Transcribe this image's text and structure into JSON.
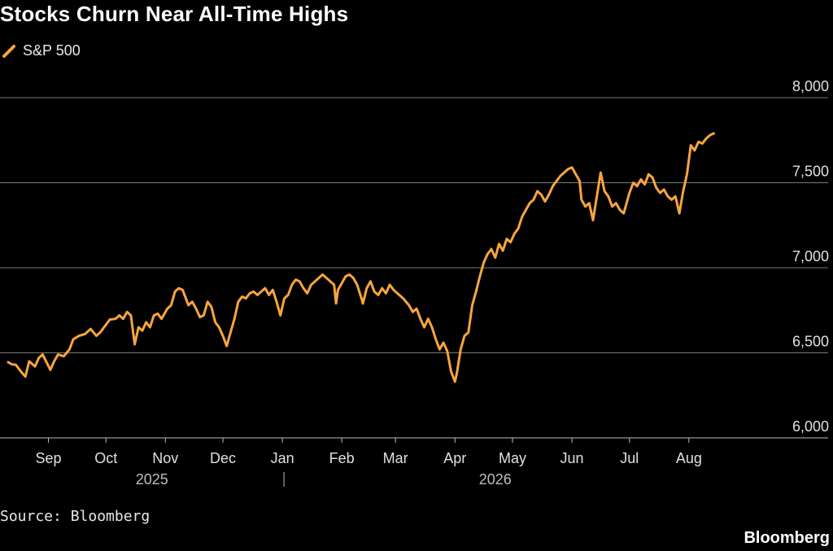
{
  "title": "Stocks Churn Near All-Time Highs",
  "source": "Source: Bloomberg",
  "brand": "Bloomberg",
  "colors": {
    "line": "#f7a540",
    "grid": "#7a7a7a",
    "text": "#e0e0e0",
    "background": "#000000"
  },
  "chart_data": {
    "type": "line",
    "legend_position": "top-left",
    "grid": true,
    "ylim": [
      6000,
      8000
    ],
    "y_ticks": [
      6000,
      6500,
      7000,
      7500,
      8000
    ],
    "y_tick_labels": [
      "6,000",
      "6,500",
      "7,000",
      "7,500",
      "8,000"
    ],
    "x_tick_labels": [
      "Sep",
      "Oct",
      "Nov",
      "Dec",
      "Jan",
      "Feb",
      "Mar",
      "Apr",
      "May",
      "Jun",
      "Jul",
      "Aug"
    ],
    "x_tick_dates": [
      "2025-09-01",
      "2025-10-01",
      "2025-11-01",
      "2025-12-01",
      "2026-01-01",
      "2026-02-01",
      "2026-03-01",
      "2026-04-01",
      "2026-05-01",
      "2026-06-01",
      "2026-07-01",
      "2026-08-01"
    ],
    "year_labels": [
      {
        "label": "2025",
        "date": "2025-10-25"
      },
      {
        "label": "2026",
        "date": "2026-04-22"
      }
    ],
    "year_divider_date": "2026-01-01",
    "xlim": [
      "2025-08-11",
      "2026-09-18"
    ],
    "series": [
      {
        "name": "S&P 500",
        "points": [
          [
            "2025-08-11",
            6445
          ],
          [
            "2025-08-13",
            6432
          ],
          [
            "2025-08-15",
            6430
          ],
          [
            "2025-08-18",
            6385
          ],
          [
            "2025-08-20",
            6360
          ],
          [
            "2025-08-22",
            6450
          ],
          [
            "2025-08-25",
            6420
          ],
          [
            "2025-08-27",
            6470
          ],
          [
            "2025-08-29",
            6490
          ],
          [
            "2025-09-02",
            6400
          ],
          [
            "2025-09-04",
            6450
          ],
          [
            "2025-09-06",
            6490
          ],
          [
            "2025-09-09",
            6480
          ],
          [
            "2025-09-12",
            6520
          ],
          [
            "2025-09-14",
            6580
          ],
          [
            "2025-09-17",
            6600
          ],
          [
            "2025-09-20",
            6610
          ],
          [
            "2025-09-23",
            6640
          ],
          [
            "2025-09-26",
            6600
          ],
          [
            "2025-09-28",
            6620
          ],
          [
            "2025-10-01",
            6665
          ],
          [
            "2025-10-03",
            6695
          ],
          [
            "2025-10-06",
            6700
          ],
          [
            "2025-10-08",
            6720
          ],
          [
            "2025-10-10",
            6700
          ],
          [
            "2025-10-12",
            6740
          ],
          [
            "2025-10-14",
            6720
          ],
          [
            "2025-10-16",
            6550
          ],
          [
            "2025-10-18",
            6650
          ],
          [
            "2025-10-20",
            6630
          ],
          [
            "2025-10-22",
            6680
          ],
          [
            "2025-10-24",
            6650
          ],
          [
            "2025-10-26",
            6720
          ],
          [
            "2025-10-28",
            6730
          ],
          [
            "2025-10-30",
            6700
          ],
          [
            "2025-11-02",
            6760
          ],
          [
            "2025-11-04",
            6780
          ],
          [
            "2025-11-06",
            6860
          ],
          [
            "2025-11-08",
            6880
          ],
          [
            "2025-11-10",
            6870
          ],
          [
            "2025-11-13",
            6780
          ],
          [
            "2025-11-15",
            6800
          ],
          [
            "2025-11-17",
            6760
          ],
          [
            "2025-11-19",
            6710
          ],
          [
            "2025-11-21",
            6720
          ],
          [
            "2025-11-23",
            6800
          ],
          [
            "2025-11-25",
            6770
          ],
          [
            "2025-11-27",
            6680
          ],
          [
            "2025-11-29",
            6650
          ],
          [
            "2025-12-01",
            6600
          ],
          [
            "2025-12-03",
            6540
          ],
          [
            "2025-12-05",
            6620
          ],
          [
            "2025-12-07",
            6700
          ],
          [
            "2025-12-09",
            6800
          ],
          [
            "2025-12-11",
            6830
          ],
          [
            "2025-12-13",
            6820
          ],
          [
            "2025-12-15",
            6850
          ],
          [
            "2025-12-17",
            6860
          ],
          [
            "2025-12-19",
            6840
          ],
          [
            "2025-12-21",
            6860
          ],
          [
            "2025-12-23",
            6880
          ],
          [
            "2025-12-25",
            6840
          ],
          [
            "2025-12-27",
            6870
          ],
          [
            "2025-12-29",
            6800
          ],
          [
            "2025-12-31",
            6720
          ],
          [
            "2026-01-02",
            6820
          ],
          [
            "2026-01-04",
            6840
          ],
          [
            "2026-01-06",
            6900
          ],
          [
            "2026-01-08",
            6930
          ],
          [
            "2026-01-10",
            6920
          ],
          [
            "2026-01-12",
            6880
          ],
          [
            "2026-01-14",
            6850
          ],
          [
            "2026-01-16",
            6900
          ],
          [
            "2026-01-18",
            6920
          ],
          [
            "2026-01-20",
            6940
          ],
          [
            "2026-01-22",
            6960
          ],
          [
            "2026-01-24",
            6940
          ],
          [
            "2026-01-26",
            6920
          ],
          [
            "2026-01-28",
            6900
          ],
          [
            "2026-01-29",
            6790
          ],
          [
            "2026-01-30",
            6870
          ],
          [
            "2026-02-01",
            6910
          ],
          [
            "2026-02-03",
            6950
          ],
          [
            "2026-02-05",
            6960
          ],
          [
            "2026-02-07",
            6940
          ],
          [
            "2026-02-09",
            6900
          ],
          [
            "2026-02-11",
            6830
          ],
          [
            "2026-02-12",
            6790
          ],
          [
            "2026-02-14",
            6880
          ],
          [
            "2026-02-16",
            6920
          ],
          [
            "2026-02-18",
            6860
          ],
          [
            "2026-02-20",
            6840
          ],
          [
            "2026-02-22",
            6880
          ],
          [
            "2026-02-24",
            6850
          ],
          [
            "2026-02-26",
            6900
          ],
          [
            "2026-02-28",
            6870
          ],
          [
            "2026-03-02",
            6850
          ],
          [
            "2026-03-05",
            6820
          ],
          [
            "2026-03-08",
            6780
          ],
          [
            "2026-03-10",
            6740
          ],
          [
            "2026-03-12",
            6760
          ],
          [
            "2026-03-14",
            6700
          ],
          [
            "2026-03-16",
            6650
          ],
          [
            "2026-03-18",
            6700
          ],
          [
            "2026-03-20",
            6650
          ],
          [
            "2026-03-22",
            6580
          ],
          [
            "2026-03-24",
            6520
          ],
          [
            "2026-03-26",
            6560
          ],
          [
            "2026-03-28",
            6510
          ],
          [
            "2026-03-30",
            6390
          ],
          [
            "2026-04-01",
            6330
          ],
          [
            "2026-04-02",
            6380
          ],
          [
            "2026-04-04",
            6520
          ],
          [
            "2026-04-06",
            6600
          ],
          [
            "2026-04-08",
            6620
          ],
          [
            "2026-04-10",
            6780
          ],
          [
            "2026-04-12",
            6860
          ],
          [
            "2026-04-14",
            6950
          ],
          [
            "2026-04-16",
            7030
          ],
          [
            "2026-04-18",
            7080
          ],
          [
            "2026-04-20",
            7110
          ],
          [
            "2026-04-22",
            7060
          ],
          [
            "2026-04-24",
            7140
          ],
          [
            "2026-04-26",
            7100
          ],
          [
            "2026-04-28",
            7170
          ],
          [
            "2026-04-30",
            7150
          ],
          [
            "2026-05-02",
            7200
          ],
          [
            "2026-05-04",
            7230
          ],
          [
            "2026-05-06",
            7300
          ],
          [
            "2026-05-08",
            7340
          ],
          [
            "2026-05-10",
            7380
          ],
          [
            "2026-05-12",
            7400
          ],
          [
            "2026-05-14",
            7450
          ],
          [
            "2026-05-16",
            7430
          ],
          [
            "2026-05-18",
            7390
          ],
          [
            "2026-05-20",
            7430
          ],
          [
            "2026-05-22",
            7480
          ],
          [
            "2026-05-24",
            7510
          ],
          [
            "2026-05-26",
            7540
          ],
          [
            "2026-05-28",
            7560
          ],
          [
            "2026-05-30",
            7580
          ],
          [
            "2026-06-01",
            7590
          ],
          [
            "2026-06-03",
            7550
          ],
          [
            "2026-06-05",
            7510
          ],
          [
            "2026-06-06",
            7400
          ],
          [
            "2026-06-08",
            7360
          ],
          [
            "2026-06-10",
            7380
          ],
          [
            "2026-06-12",
            7280
          ],
          [
            "2026-06-14",
            7420
          ],
          [
            "2026-06-16",
            7560
          ],
          [
            "2026-06-18",
            7450
          ],
          [
            "2026-06-20",
            7420
          ],
          [
            "2026-06-22",
            7360
          ],
          [
            "2026-06-24",
            7380
          ],
          [
            "2026-06-26",
            7340
          ],
          [
            "2026-06-28",
            7320
          ],
          [
            "2026-07-01",
            7440
          ],
          [
            "2026-07-03",
            7500
          ],
          [
            "2026-07-05",
            7480
          ],
          [
            "2026-07-07",
            7520
          ],
          [
            "2026-07-09",
            7490
          ],
          [
            "2026-07-11",
            7550
          ],
          [
            "2026-07-13",
            7530
          ],
          [
            "2026-07-15",
            7470
          ],
          [
            "2026-07-17",
            7440
          ],
          [
            "2026-07-19",
            7460
          ],
          [
            "2026-07-21",
            7420
          ],
          [
            "2026-07-23",
            7400
          ],
          [
            "2026-07-25",
            7420
          ],
          [
            "2026-07-27",
            7320
          ],
          [
            "2026-07-29",
            7450
          ],
          [
            "2026-07-31",
            7550
          ],
          [
            "2026-08-02",
            7720
          ],
          [
            "2026-08-04",
            7690
          ],
          [
            "2026-08-06",
            7740
          ],
          [
            "2026-08-08",
            7730
          ],
          [
            "2026-08-10",
            7760
          ],
          [
            "2026-08-12",
            7780
          ],
          [
            "2026-08-14",
            7790
          ]
        ]
      }
    ]
  }
}
